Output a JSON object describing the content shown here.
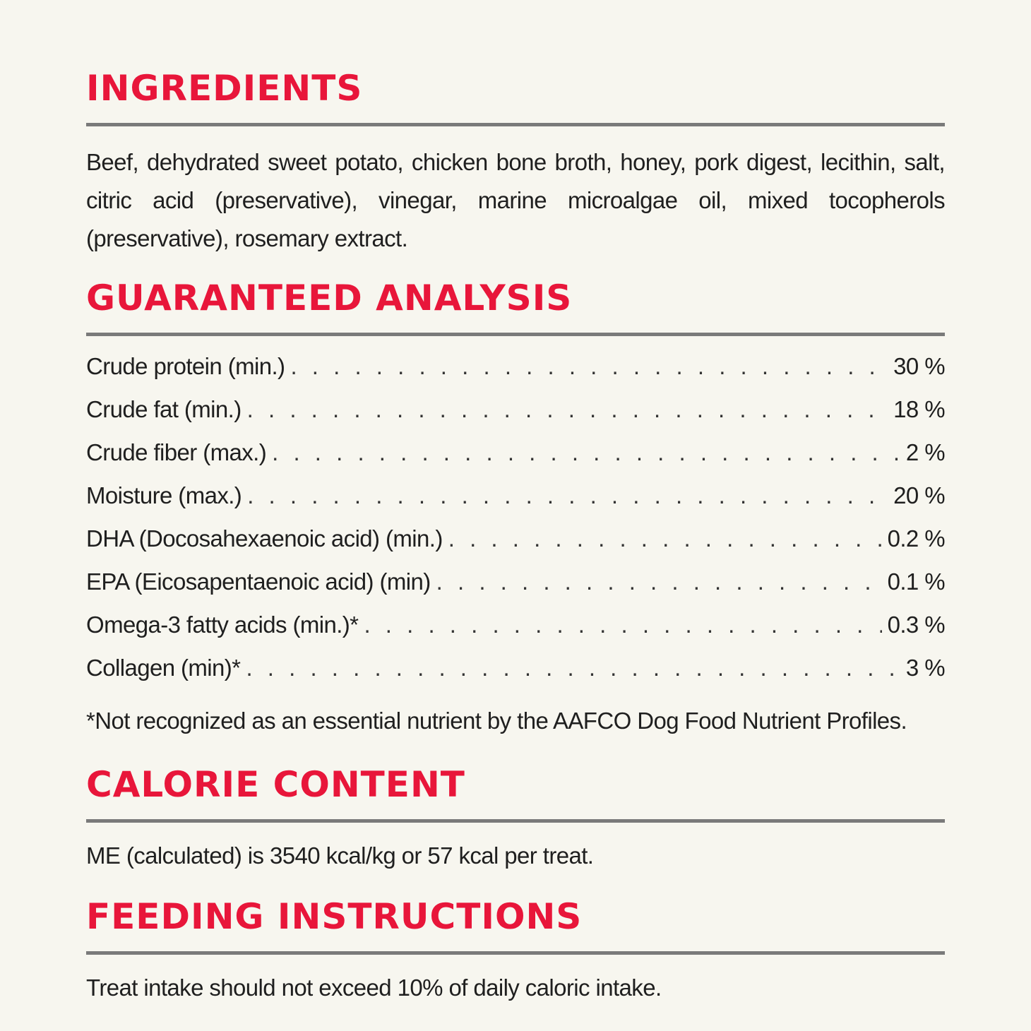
{
  "ingredients": {
    "heading": "INGREDIENTS",
    "text": "Beef, dehydrated sweet potato, chicken bone broth, honey, pork digest, lecithin, salt, citric acid (preservative), vinegar, marine microalgae oil, mixed tocopherols (preservative), rosemary extract."
  },
  "analysis": {
    "heading": "GUARANTEED ANALYSIS",
    "rows": [
      {
        "name": "Crude protein (min.)",
        "value": "30 %"
      },
      {
        "name": "Crude fat (min.)",
        "value": "18 %"
      },
      {
        "name": "Crude fiber (max.)",
        "value": "2 %"
      },
      {
        "name": "Moisture (max.)",
        "value": "20 %"
      },
      {
        "name": "DHA (Docosahexaenoic acid) (min.)",
        "value": "0.2 %"
      },
      {
        "name": "EPA (Eicosapentaenoic acid) (min)",
        "value": "0.1 %"
      },
      {
        "name": "Omega-3 fatty acids (min.)*",
        "value": "0.3 %"
      },
      {
        "name": "Collagen (min)*",
        "value": "3 %"
      }
    ],
    "footnote": "*Not recognized as an essential nutrient by the AAFCO Dog Food Nutrient Profiles."
  },
  "calorie": {
    "heading": "CALORIE CONTENT",
    "text": "ME (calculated) is 3540 kcal/kg or 57 kcal per treat."
  },
  "feeding": {
    "heading": "FEEDING INSTRUCTIONS",
    "text": "Treat intake should not exceed 10% of daily caloric intake."
  }
}
